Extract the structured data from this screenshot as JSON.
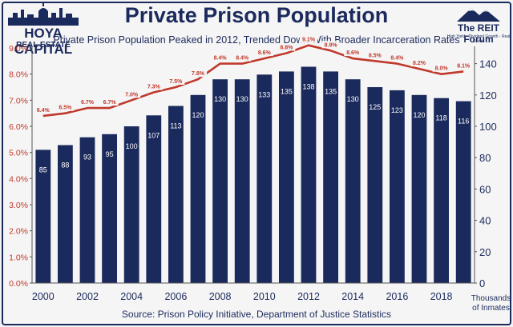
{
  "branding": {
    "left_name": "HOYA CAPITAL",
    "left_sub": "REAL ESTATE",
    "right_name": "The REIT Forum",
    "right_tag": "High Yield · Dividend Growth · Real Estate"
  },
  "source": "Source: Prison Policy Initiative, Department of Justice Statistics",
  "units_line1": "Thousands",
  "units_line2": "of Inmates",
  "colors": {
    "bar": "#1b2a5c",
    "line": "#c0392b",
    "left_axis": "#c0392b",
    "right_axis": "#1b2a5c",
    "background": "#f5f5f5"
  },
  "chart_data": {
    "type": "bar",
    "title": "Private Prison Population",
    "subtitle": "Private Prison Population Peaked in 2012, Trended Down With Broader Incarceration Rates",
    "categories": [
      "2000",
      "2001",
      "2002",
      "2003",
      "2004",
      "2005",
      "2006",
      "2007",
      "2008",
      "2009",
      "2010",
      "2011",
      "2012",
      "2013",
      "2014",
      "2015",
      "2016",
      "2017",
      "2018",
      "2019"
    ],
    "x_tick_labels": [
      "2000",
      "2002",
      "2004",
      "2006",
      "2008",
      "2010",
      "2012",
      "2014",
      "2016",
      "2018"
    ],
    "series": [
      {
        "type": "bar",
        "axis": "right",
        "values": [
          85,
          88,
          93,
          95,
          100,
          107,
          113,
          120,
          130,
          130,
          133,
          135,
          138,
          135,
          130,
          125,
          123,
          120,
          118,
          116
        ],
        "labels": [
          "85",
          "88",
          "93",
          "95",
          "100",
          "107",
          "113",
          "120",
          "130",
          "130",
          "133",
          "135",
          "138",
          "135",
          "130",
          "125",
          "123",
          "120",
          "118",
          "116"
        ]
      },
      {
        "type": "line",
        "axis": "left",
        "values": [
          6.4,
          6.5,
          6.7,
          6.7,
          7.0,
          7.3,
          7.5,
          7.8,
          8.4,
          8.4,
          8.6,
          8.8,
          9.1,
          8.9,
          8.6,
          8.5,
          8.4,
          8.2,
          8.0,
          8.1
        ],
        "labels": [
          "6.4%",
          "6.5%",
          "6.7%",
          "6.7%",
          "7.0%",
          "7.3%",
          "7.5%",
          "7.8%",
          "8.4%",
          "8.4%",
          "8.6%",
          "8.8%",
          "9.1%",
          "8.9%",
          "8.6%",
          "8.5%",
          "8.4%",
          "8.2%",
          "8.0%",
          "8.1%"
        ]
      }
    ],
    "y_left": {
      "min": 0,
      "max": 9,
      "ticks": [
        0,
        1,
        2,
        3,
        4,
        5,
        6,
        7,
        8,
        9
      ],
      "tick_labels": [
        "0.0%",
        "1.0%",
        "2.0%",
        "3.0%",
        "4.0%",
        "5.0%",
        "6.0%",
        "7.0%",
        "8.0%",
        "9.0%"
      ]
    },
    "y_right": {
      "min": 0,
      "max": 150,
      "ticks": [
        0,
        20,
        40,
        60,
        80,
        100,
        120,
        140
      ],
      "tick_labels": [
        "0",
        "20",
        "40",
        "60",
        "80",
        "100",
        "120",
        "140"
      ]
    },
    "grid": false,
    "legend": "none"
  }
}
